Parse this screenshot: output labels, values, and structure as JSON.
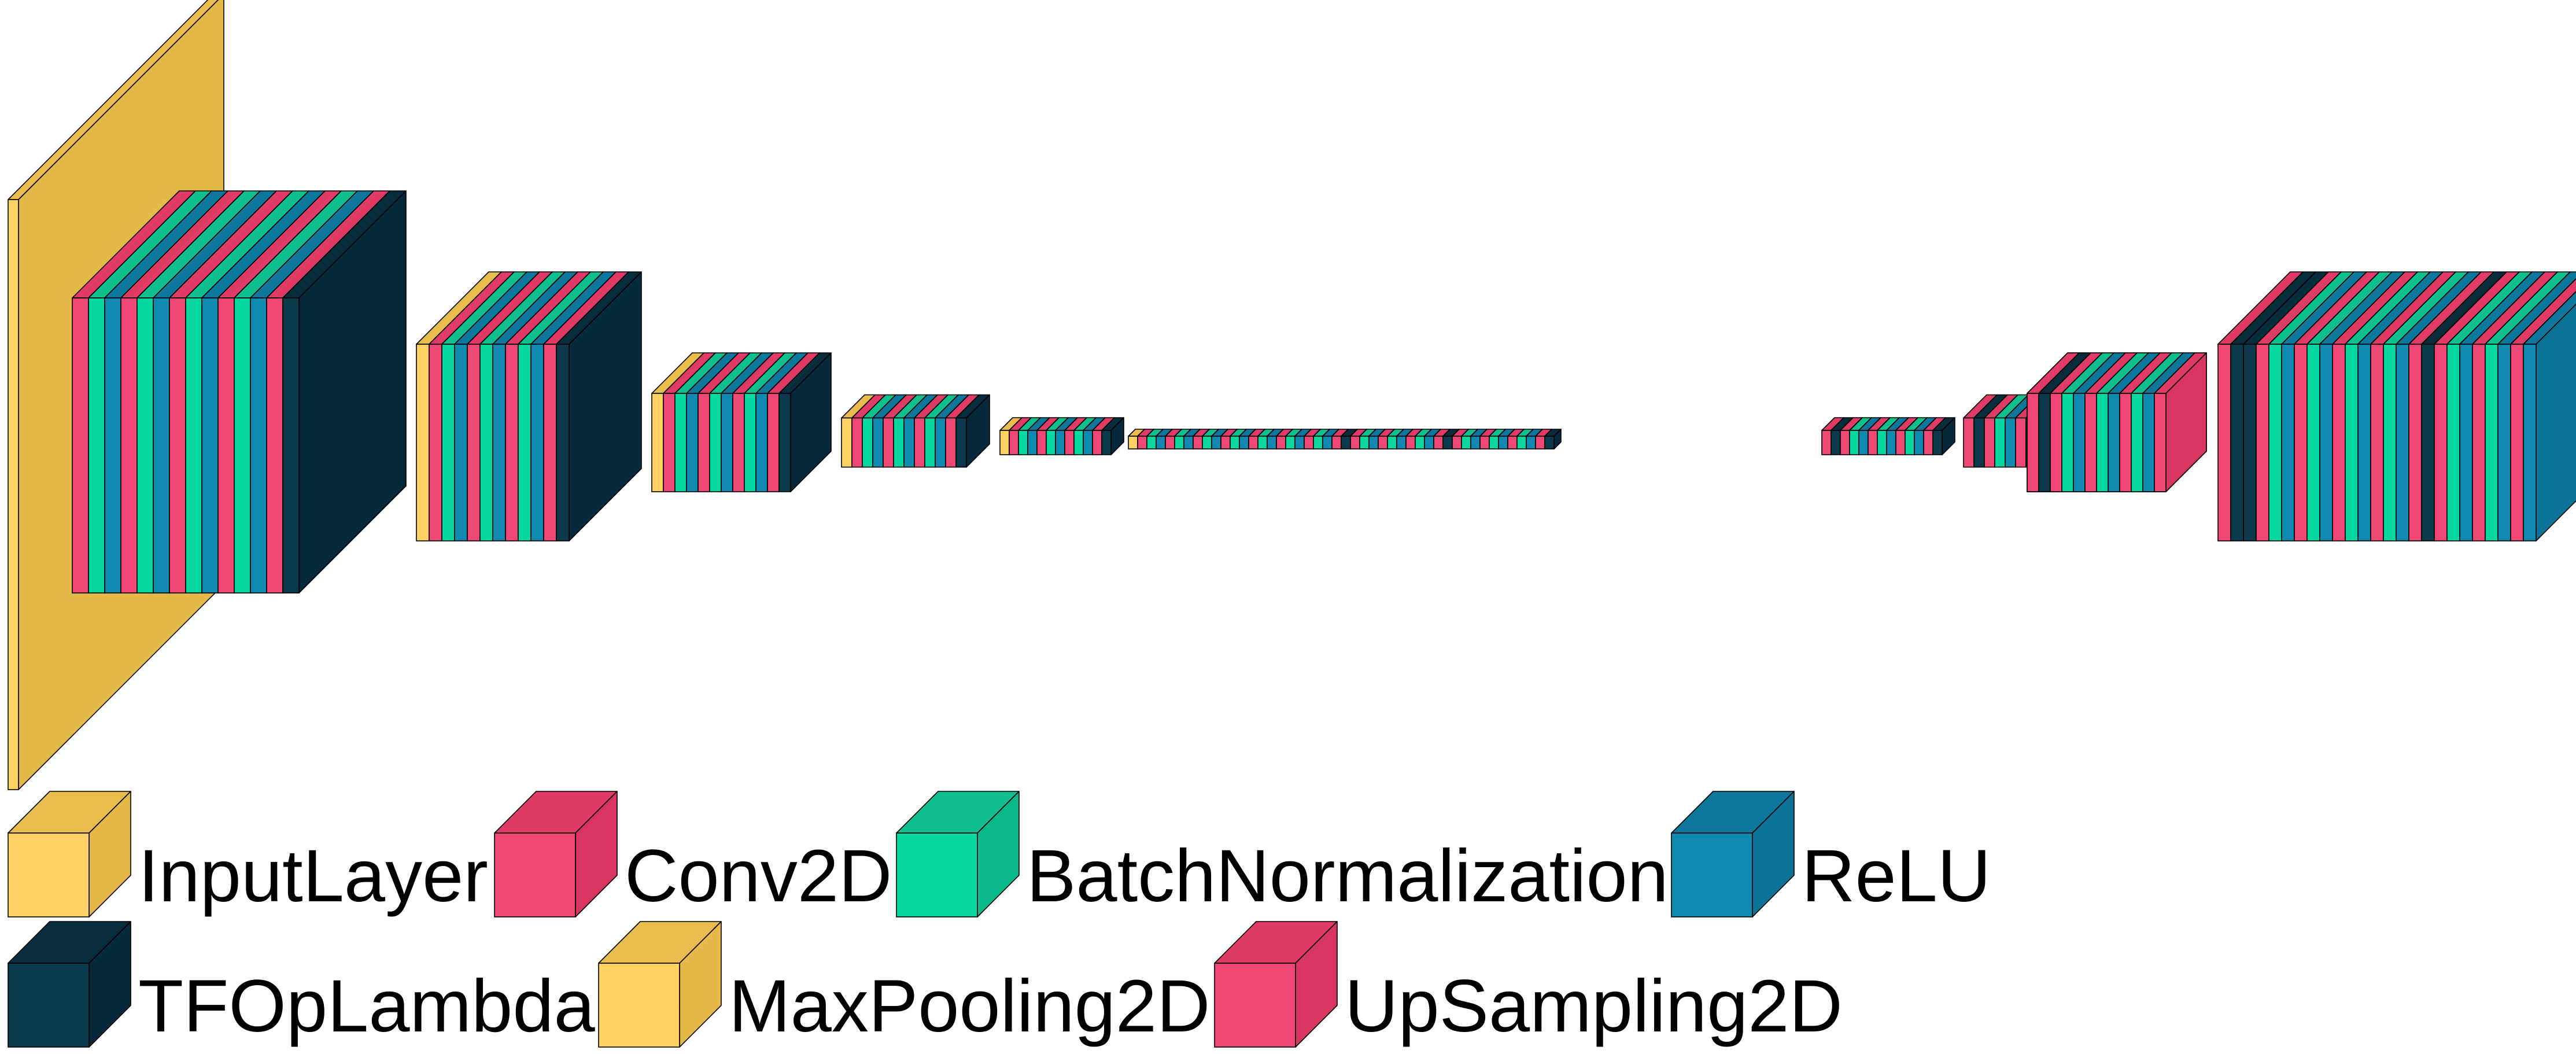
{
  "layer_types": [
    {
      "key": "input",
      "label": "InputLayer",
      "front": "#fdd163",
      "top": "#e8bd4e",
      "side": "#e4b94a"
    },
    {
      "key": "conv",
      "label": "Conv2D",
      "front": "#ef4874",
      "top": "#e03a66",
      "side": "#d83562"
    },
    {
      "key": "bn",
      "label": "BatchNormalization",
      "front": "#06d6a0",
      "top": "#0fbf8e",
      "side": "#0ab889"
    },
    {
      "key": "relu",
      "label": "ReLU",
      "front": "#118ab2",
      "top": "#0d789c",
      "side": "#0b7396"
    },
    {
      "key": "lambda",
      "label": "TFOpLambda",
      "front": "#0b3a4d",
      "top": "#072c3b",
      "side": "#05283a"
    },
    {
      "key": "pool",
      "label": "MaxPooling2D",
      "front": "#fdd163",
      "top": "#e8bd4e",
      "side": "#e4b94a"
    },
    {
      "key": "upsample",
      "label": "UpSampling2D",
      "front": "#ef4874",
      "top": "#e03a66",
      "side": "#d83562"
    }
  ],
  "network_sequence": {
    "input_layer": "input",
    "encoder_blocks": [
      [
        "conv",
        "bn",
        "relu",
        "conv",
        "bn",
        "relu",
        "conv",
        "bn",
        "relu",
        "conv",
        "bn",
        "relu",
        "conv",
        "lambda"
      ],
      [
        "pool",
        "conv",
        "bn",
        "relu",
        "conv",
        "bn",
        "relu",
        "conv",
        "bn",
        "relu",
        "conv",
        "lambda"
      ],
      [
        "pool",
        "conv",
        "bn",
        "relu",
        "conv",
        "bn",
        "relu",
        "conv",
        "bn",
        "relu",
        "conv",
        "lambda"
      ],
      [
        "pool",
        "conv",
        "bn",
        "relu",
        "conv",
        "bn",
        "relu",
        "conv",
        "bn",
        "relu",
        "conv",
        "lambda"
      ],
      [
        "pool",
        "conv",
        "bn",
        "relu",
        "conv",
        "bn",
        "relu",
        "conv",
        "bn",
        "relu",
        "conv",
        "lambda"
      ],
      [
        "pool",
        "conv",
        "bn",
        "relu",
        "conv",
        "bn",
        "relu",
        "conv",
        "bn",
        "relu",
        "conv",
        "bn",
        "relu",
        "conv",
        "bn",
        "relu",
        "conv",
        "bn",
        "relu",
        "conv",
        "bn",
        "relu",
        "conv",
        "lambda",
        "conv",
        "bn",
        "relu",
        "conv",
        "bn",
        "relu",
        "conv",
        "bn",
        "relu",
        "conv",
        "lambda",
        "conv",
        "bn",
        "relu",
        "conv",
        "bn",
        "relu",
        "conv",
        "bn",
        "relu",
        "conv",
        "lambda"
      ]
    ],
    "decoder_blocks": [
      [
        "upsample",
        "lambda",
        "conv",
        "bn",
        "relu",
        "conv",
        "bn",
        "relu",
        "conv",
        "bn",
        "relu",
        "conv",
        "lambda"
      ],
      [
        "upsample",
        "lambda",
        "conv",
        "bn",
        "relu",
        "conv",
        "bn",
        "relu",
        "conv",
        "bn",
        "relu",
        "conv",
        "lambda"
      ],
      [
        "upsample",
        "lambda",
        "conv",
        "bn",
        "relu",
        "conv",
        "bn",
        "relu",
        "conv",
        "bn",
        "relu",
        "conv"
      ],
      [
        "upsample",
        "lambda",
        "conv",
        "bn",
        "relu",
        "conv",
        "bn",
        "relu",
        "conv",
        "bn",
        "relu",
        "conv"
      ],
      [
        "upsample",
        "lambda",
        "lambda",
        "conv",
        "bn",
        "relu",
        "conv",
        "bn",
        "relu",
        "conv",
        "bn",
        "relu",
        "conv",
        "bn",
        "relu",
        "conv",
        "lambda",
        "conv",
        "bn",
        "relu",
        "conv",
        "bn",
        "relu",
        "conv",
        "relu"
      ]
    ]
  }
}
